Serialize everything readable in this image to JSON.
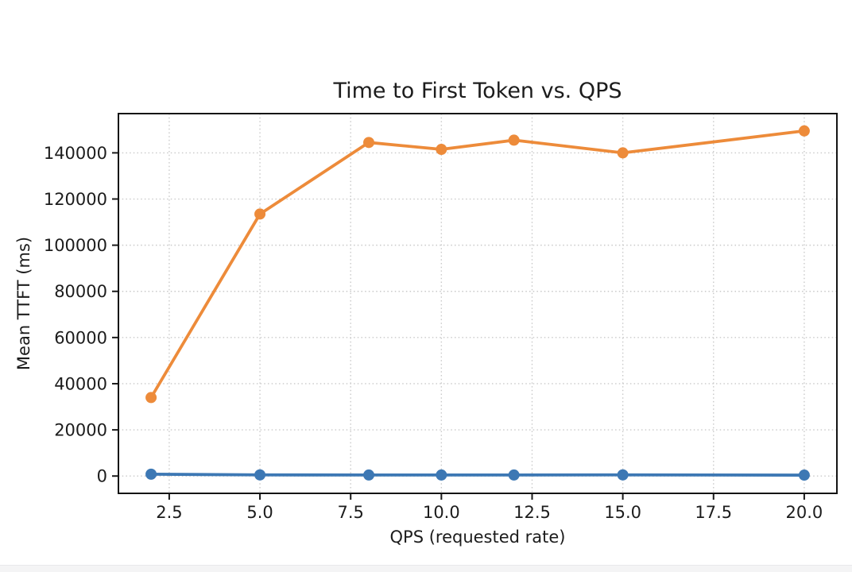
{
  "page": {
    "background": "#ffffff",
    "footer_strip_color": "#f4f4f5"
  },
  "chart_data": {
    "type": "line",
    "title": "Time to First Token vs. QPS",
    "xlabel": "QPS (requested rate)",
    "ylabel": "Mean TTFT (ms)",
    "x": [
      2,
      5,
      8,
      10,
      12,
      15,
      20
    ],
    "series": [
      {
        "id": "blue",
        "color": "#3d78b4",
        "values": [
          800,
          500,
          450,
          450,
          450,
          500,
          400
        ]
      },
      {
        "id": "orange",
        "color": "#ed8b3a",
        "values": [
          34000,
          113500,
          144500,
          141500,
          145500,
          140000,
          149500
        ]
      }
    ],
    "xticks": {
      "values": [
        2.5,
        5.0,
        7.5,
        10.0,
        12.5,
        15.0,
        17.5,
        20.0
      ],
      "labels": [
        "2.5",
        "5.0",
        "7.5",
        "10.0",
        "12.5",
        "15.0",
        "17.5",
        "20.0"
      ]
    },
    "yticks": {
      "values": [
        0,
        20000,
        40000,
        60000,
        80000,
        100000,
        120000,
        140000
      ],
      "labels": [
        "0",
        "20000",
        "40000",
        "60000",
        "80000",
        "100000",
        "120000",
        "140000"
      ]
    },
    "xlim": [
      1.1,
      20.9
    ],
    "ylim": [
      -7500,
      157000
    ],
    "grid": true,
    "legend": "none",
    "grid_color": "#c9c9c9",
    "axis_color": "#141414",
    "marker": "circle"
  }
}
